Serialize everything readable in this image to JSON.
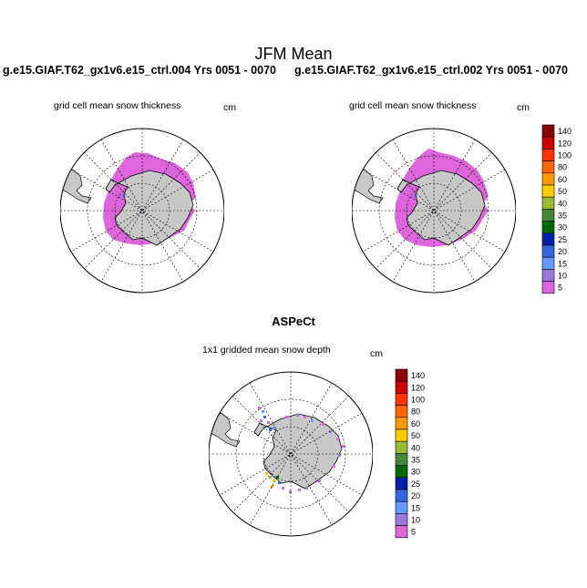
{
  "header": {
    "title": "JFM Mean",
    "run_left": "g.e15.GIAF.T62_gx1v6.e15_ctrl.004  Yrs 0051 - 0070",
    "run_right": "g.e15.GIAF.T62_gx1v6.e15_ctrl.002  Yrs 0051 - 0070"
  },
  "panels": {
    "left": {
      "label": "grid cell mean snow thickness",
      "unit": "cm"
    },
    "right": {
      "label": "grid cell mean snow thickness",
      "unit": "cm"
    },
    "bottom": {
      "title": "ASPeCt",
      "label": "1x1 gridded mean snow depth",
      "unit": "cm"
    }
  },
  "colorbar": {
    "levels": [
      "140",
      "120",
      "100",
      "80",
      "60",
      "50",
      "40",
      "35",
      "30",
      "25",
      "20",
      "15",
      "10",
      "5"
    ],
    "colors": [
      "#8b0000",
      "#cc0000",
      "#ff3300",
      "#ff6600",
      "#ff9900",
      "#ffcc00",
      "#99bb33",
      "#448833",
      "#006600",
      "#0022aa",
      "#3366dd",
      "#6699ff",
      "#9977dd",
      "#dd66dd"
    ]
  },
  "colors": {
    "land": "#c8c8c8",
    "snow_low": "#dd66dd"
  }
}
